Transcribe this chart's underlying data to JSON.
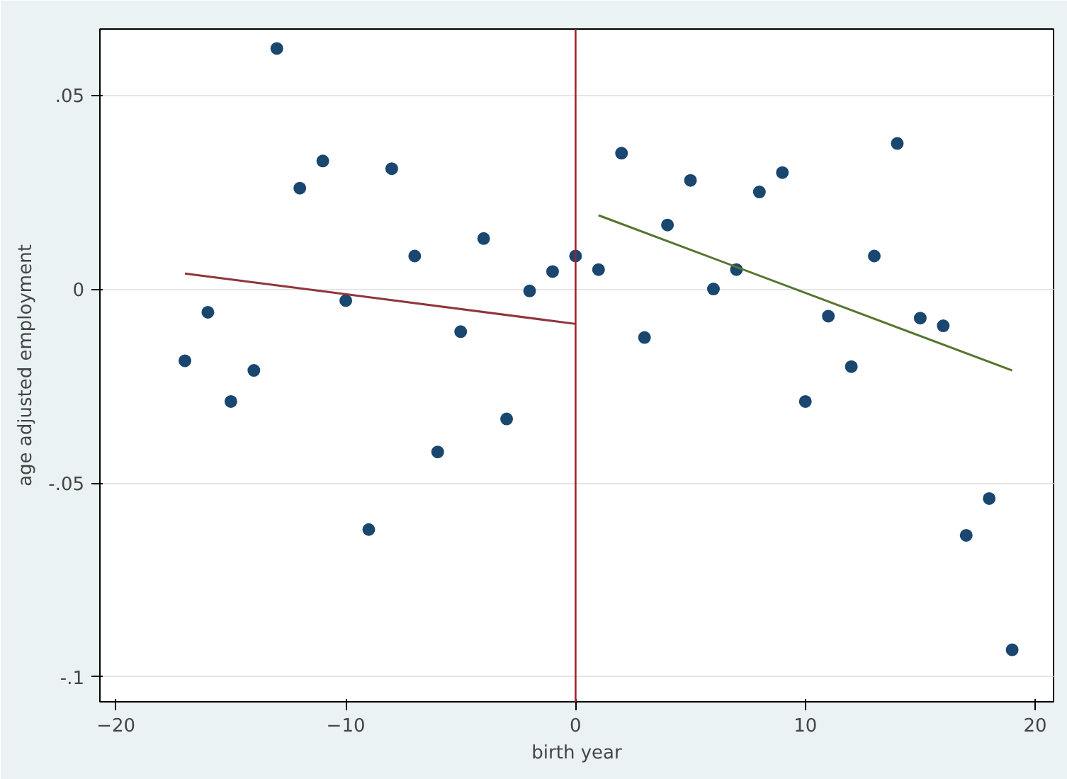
{
  "chart_data": {
    "type": "scatter",
    "xlabel": "birth year",
    "ylabel": "age adjusted employment",
    "xlim": [
      -20.7,
      20.8
    ],
    "ylim": [
      -0.1064,
      0.067
    ],
    "xticks": [
      -20,
      -10,
      0,
      10,
      20
    ],
    "yticks": [
      {
        "value": -0.1,
        "label": "-.1"
      },
      {
        "value": -0.05,
        "label": "-.05"
      },
      {
        "value": 0,
        "label": "0"
      },
      {
        "value": 0.05,
        "label": ".05"
      }
    ],
    "grid": "y",
    "series": [
      {
        "color": "#1a476f",
        "marker": "circle",
        "x": [
          -17,
          -16,
          -15,
          -14,
          -13,
          -12,
          -11,
          -10,
          -9,
          -8,
          -7,
          -6,
          -5,
          -4,
          -3,
          -2,
          -1,
          0,
          1,
          2,
          3,
          4,
          5,
          6,
          7,
          8,
          9,
          10,
          11,
          12,
          13,
          14,
          15,
          16,
          17,
          18,
          19
        ],
        "values": [
          -0.0185,
          -0.006,
          -0.029,
          -0.021,
          0.062,
          0.026,
          0.033,
          -0.003,
          -0.062,
          0.031,
          0.0085,
          -0.042,
          -0.011,
          0.013,
          -0.0335,
          -0.0005,
          0.0045,
          0.0085,
          0.005,
          0.035,
          -0.0125,
          0.0165,
          0.028,
          0,
          0.005,
          0.025,
          0.03,
          -0.029,
          -0.007,
          -0.02,
          0.0085,
          0.0375,
          -0.0075,
          -0.0095,
          -0.0635,
          -0.054,
          -0.093
        ]
      },
      {
        "type": "line",
        "marker": "none",
        "color": "#90353b",
        "x": [
          -17,
          0
        ],
        "values": [
          0.004,
          -0.009
        ]
      },
      {
        "type": "line",
        "marker": "none",
        "color": "#55752f",
        "x": [
          1,
          19
        ],
        "values": [
          0.019,
          -0.021
        ]
      }
    ],
    "ref_lines": [
      {
        "axis": "x",
        "value": 0,
        "color": "#a0242c"
      }
    ]
  }
}
